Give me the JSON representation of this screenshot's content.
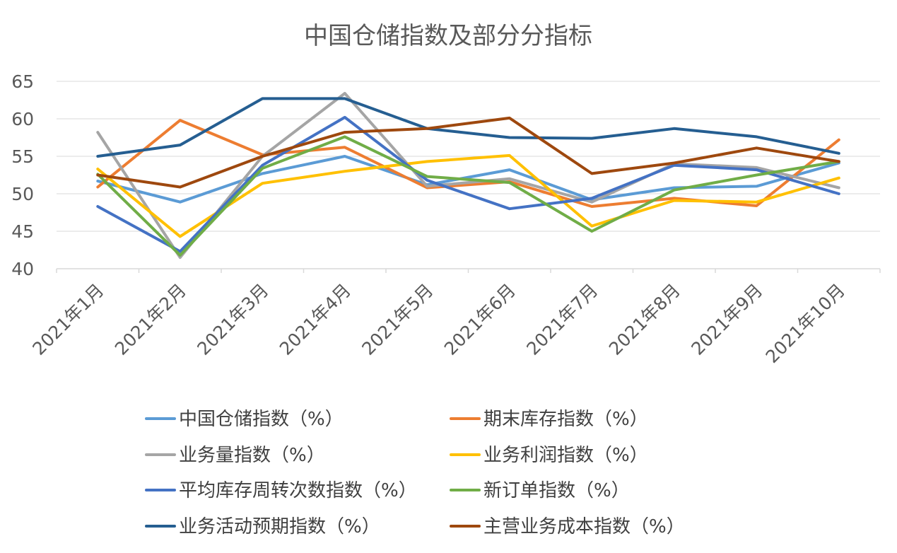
{
  "chart_data": {
    "type": "line",
    "title": "中国仓储指数及部分分指标",
    "categories": [
      "2021年1月",
      "2021年2月",
      "2021年3月",
      "2021年4月",
      "2021年5月",
      "2021年6月",
      "2021年7月",
      "2021年8月",
      "2021年9月",
      "2021年10月"
    ],
    "ylim": [
      40,
      65
    ],
    "yticks": [
      40,
      45,
      50,
      55,
      60,
      65
    ],
    "grid": true,
    "legend_position": "bottom",
    "series": [
      {
        "name": "中国仓储指数（%）",
        "color": "#5B9BD5",
        "values": [
          51.7,
          48.9,
          52.7,
          55.0,
          51.2,
          53.2,
          49.2,
          50.8,
          51.0,
          54.1
        ]
      },
      {
        "name": "期末库存指数（%）",
        "color": "#ED7D31",
        "values": [
          50.9,
          59.8,
          55.2,
          56.2,
          50.8,
          51.6,
          48.3,
          49.4,
          48.4,
          57.2
        ]
      },
      {
        "name": "业务量指数（%）",
        "color": "#A5A5A5",
        "values": [
          58.2,
          41.5,
          55.0,
          63.4,
          51.0,
          52.0,
          48.9,
          54.0,
          53.5,
          50.8
        ]
      },
      {
        "name": "业务利润指数（%）",
        "color": "#FFC000",
        "values": [
          53.3,
          44.3,
          51.4,
          53.0,
          54.3,
          55.1,
          45.7,
          49.1,
          48.9,
          52.1
        ]
      },
      {
        "name": "平均库存周转次数指数（%）",
        "color": "#4472C4",
        "values": [
          48.3,
          42.3,
          53.8,
          60.2,
          51.8,
          48.0,
          49.4,
          53.8,
          53.2,
          50.0
        ]
      },
      {
        "name": "新订单指数（%）",
        "color": "#70AD47",
        "values": [
          52.6,
          41.8,
          53.4,
          57.6,
          52.3,
          51.5,
          45.0,
          50.5,
          52.5,
          54.3
        ]
      },
      {
        "name": "业务活动预期指数（%）",
        "color": "#255E91",
        "values": [
          55.0,
          56.5,
          62.7,
          62.7,
          58.7,
          57.5,
          57.4,
          58.7,
          57.6,
          55.4
        ]
      },
      {
        "name": "主营业务成本指数（%）",
        "color": "#9E480E",
        "values": [
          52.5,
          50.9,
          55.0,
          58.2,
          58.7,
          60.1,
          52.7,
          54.1,
          56.1,
          54.3
        ]
      }
    ]
  }
}
